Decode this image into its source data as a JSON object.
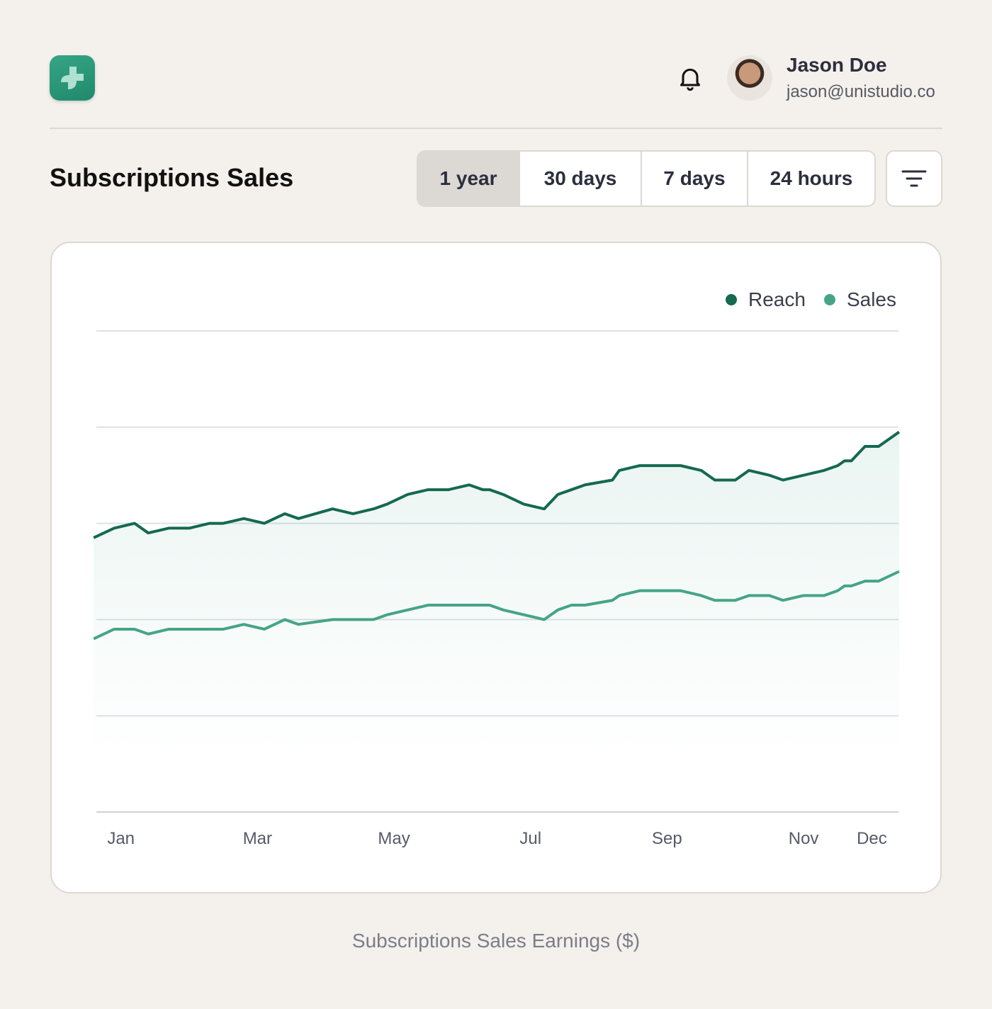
{
  "header": {
    "user_name": "Jason Doe",
    "user_email": "jason@unistudio.co",
    "logo_icon": "plus-sparkle-logo",
    "bell_icon": "bell-icon"
  },
  "toolbar": {
    "title": "Subscriptions Sales",
    "ranges": [
      "1 year",
      "30 days",
      "7 days",
      "24 hours"
    ],
    "selected_range": "1 year",
    "filter_icon": "filter-icon"
  },
  "colors": {
    "reach": "#14694f",
    "sales": "#45a487",
    "accent": "#2a9677"
  },
  "caption": "Subscriptions Sales Earnings ($)",
  "chart_data": {
    "type": "area",
    "title": "",
    "xlabel": "",
    "ylabel": "",
    "x_tick_labels": [
      "Jan",
      "Mar",
      "May",
      "Jul",
      "Sep",
      "Nov",
      "Dec"
    ],
    "x_tick_months": [
      1,
      3,
      5,
      7,
      9,
      11,
      12
    ],
    "xlim": [
      0.64,
      12.39
    ],
    "ylim": [
      0,
      100
    ],
    "grid": true,
    "legend_placement": "top-right",
    "x": [
      0.6,
      0.9,
      1.2,
      1.4,
      1.7,
      2.0,
      2.3,
      2.5,
      2.8,
      3.1,
      3.4,
      3.6,
      4.1,
      4.4,
      4.7,
      4.9,
      5.2,
      5.5,
      5.8,
      6.1,
      6.3,
      6.4,
      6.6,
      6.9,
      7.2,
      7.4,
      7.6,
      7.8,
      8.2,
      8.3,
      8.6,
      8.9,
      9.0,
      9.2,
      9.5,
      9.7,
      10.0,
      10.2,
      10.5,
      10.7,
      11.0,
      11.3,
      11.5,
      11.6,
      11.7,
      11.9,
      12.1,
      12.4
    ],
    "series": [
      {
        "name": "Reach",
        "values": [
          57,
          59,
          60,
          58,
          59,
          59,
          60,
          60,
          61,
          60,
          62,
          61,
          63,
          62,
          63,
          64,
          66,
          67,
          67,
          68,
          67,
          67,
          66,
          64,
          63,
          66,
          67,
          68,
          69,
          71,
          72,
          72,
          72,
          72,
          71,
          69,
          69,
          71,
          70,
          69,
          70,
          71,
          72,
          73,
          73,
          76,
          76,
          79
        ]
      },
      {
        "name": "Sales",
        "values": [
          36,
          38,
          38,
          37,
          38,
          38,
          38,
          38,
          39,
          38,
          40,
          39,
          40,
          40,
          40,
          41,
          42,
          43,
          43,
          43,
          43,
          43,
          42,
          41,
          40,
          42,
          43,
          43,
          44,
          45,
          46,
          46,
          46,
          46,
          45,
          44,
          44,
          45,
          45,
          44,
          45,
          45,
          46,
          47,
          47,
          48,
          48,
          50
        ]
      }
    ]
  }
}
